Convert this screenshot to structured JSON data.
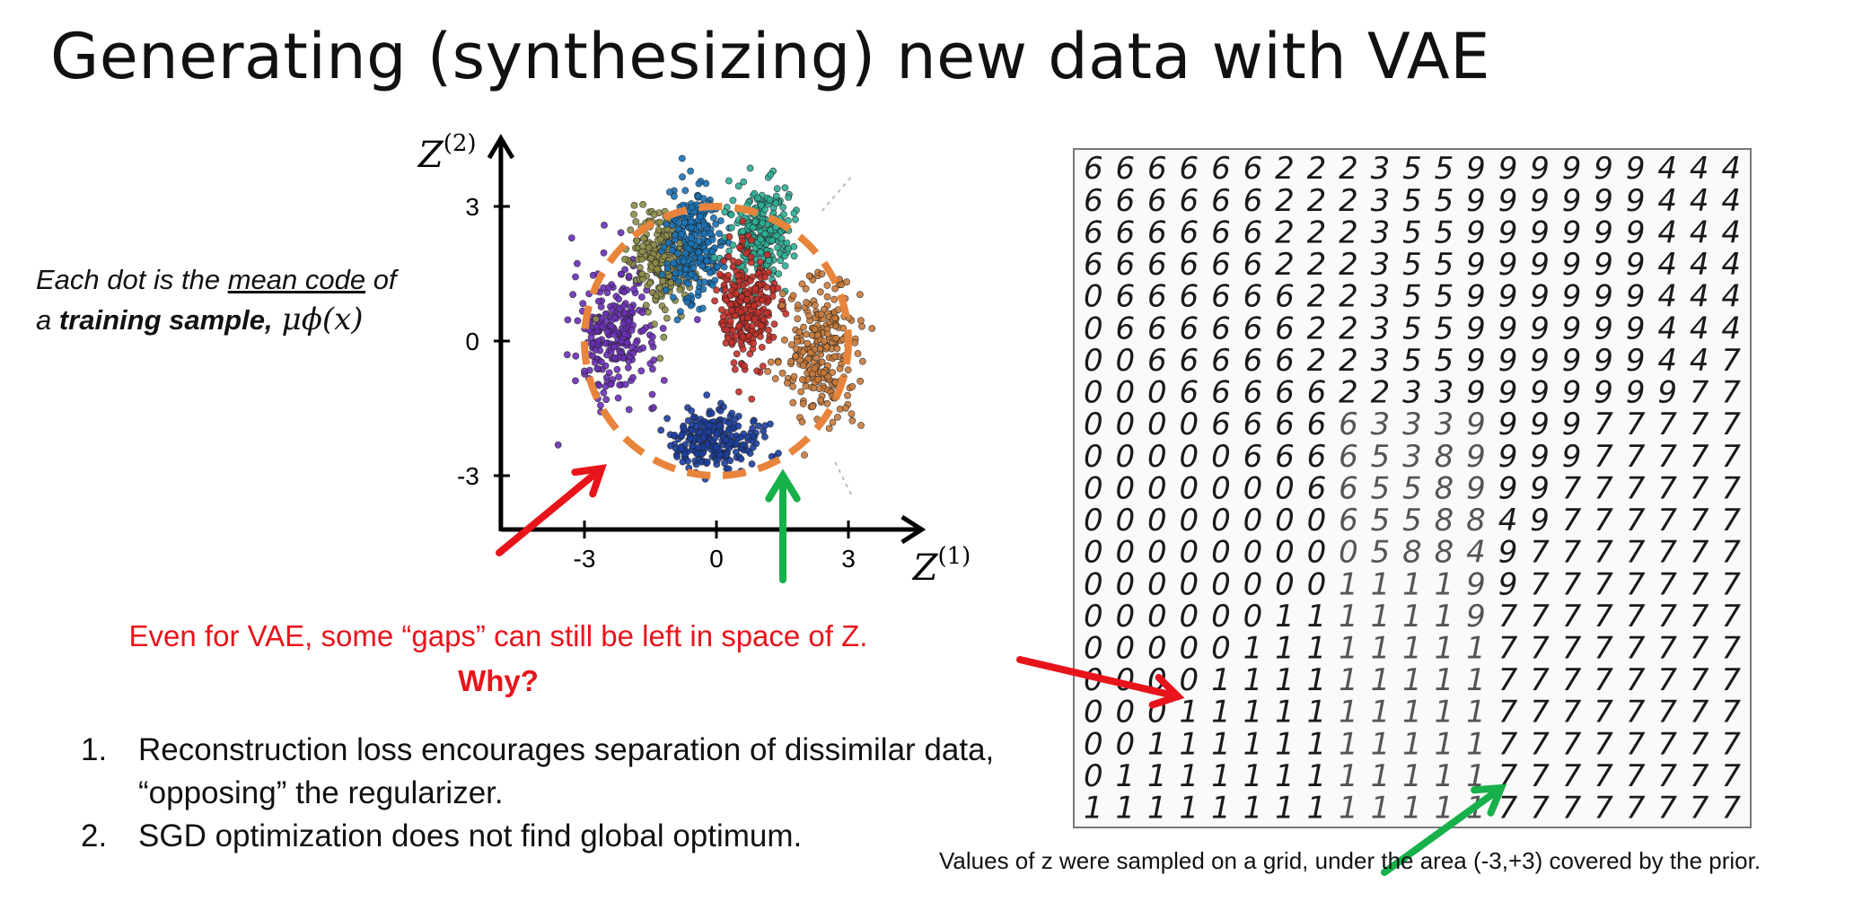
{
  "slide": {
    "title": "Generating (synthesizing) new data with VAE"
  },
  "note": {
    "prefix": "Each dot is the ",
    "underlined": "mean code",
    "suffix": " of",
    "line2_start": "a ",
    "bold": "training sample,",
    "formula": "μϕ(x)"
  },
  "gaps": {
    "line1": "Even for VAE, some “gaps” can still be left in space of Z.",
    "line2": "Why?"
  },
  "reasons": [
    {
      "num": "1.",
      "text": "Reconstruction loss encourages separation of dissimilar data, “opposing” the regularizer."
    },
    {
      "num": "2.",
      "text": "SGD optimization does not find global optimum."
    }
  ],
  "caption": "Values of z were sampled on a grid, under the area (-3,+3) covered by the prior.",
  "chart_data": {
    "type": "scatter",
    "title": "",
    "xlabel": "Z^(1)",
    "ylabel": "Z^(2)",
    "xlim": [
      -4.5,
      4.5
    ],
    "ylim": [
      -4.2,
      4.2
    ],
    "x_ticks": [
      "-3",
      "0",
      "3"
    ],
    "y_ticks": [
      "3",
      "0",
      "-3"
    ],
    "x_tick_values": [
      -3,
      0,
      3
    ],
    "y_tick_values": [
      3,
      0,
      -3
    ],
    "prior_circle_radius": 3,
    "clusters": [
      {
        "color": "#6a2fb5",
        "center": [
          -2.3,
          0.2
        ],
        "spread": [
          0.8,
          1.2
        ]
      },
      {
        "color": "#8c8c4a",
        "center": [
          -1.2,
          1.8
        ],
        "spread": [
          0.6,
          0.9
        ]
      },
      {
        "color": "#1a72b4",
        "center": [
          -0.5,
          2.2
        ],
        "spread": [
          0.5,
          1.1
        ]
      },
      {
        "color": "#2fae95",
        "center": [
          1.0,
          2.4
        ],
        "spread": [
          0.6,
          0.8
        ]
      },
      {
        "color": "#c4302a",
        "center": [
          0.7,
          0.8
        ],
        "spread": [
          0.5,
          1.1
        ]
      },
      {
        "color": "#c87a3a",
        "center": [
          2.4,
          -0.2
        ],
        "spread": [
          0.8,
          1.3
        ]
      },
      {
        "color": "#1c3fa0",
        "center": [
          0.0,
          -2.2
        ],
        "spread": [
          0.8,
          0.5
        ]
      }
    ],
    "colors": {
      "prior": "#e8843c",
      "red_arrow": "#e8141b",
      "green_arrow": "#17b04a"
    }
  },
  "digit_grid": {
    "rows": [
      "666666222355999999444",
      "666666222355999999444",
      "666666222355999999444",
      "666666222355999999444",
      "066666622355999999444",
      "066666622355999999444",
      "006666622355999999447",
      "000666662233999999977",
      "000066666333999977777",
      "000006666538999977777",
      "000000066558999777777",
      "000000006558849777777",
      "000000000588497777777",
      "000000001111997777777",
      "000000111111977777777",
      "000001111111177777777",
      "000011111111177777777",
      "000111111111177777777",
      "001111111111177777777",
      "011111111111177777777",
      "111111111111177777777"
    ],
    "rows_as_printed": 21
  }
}
